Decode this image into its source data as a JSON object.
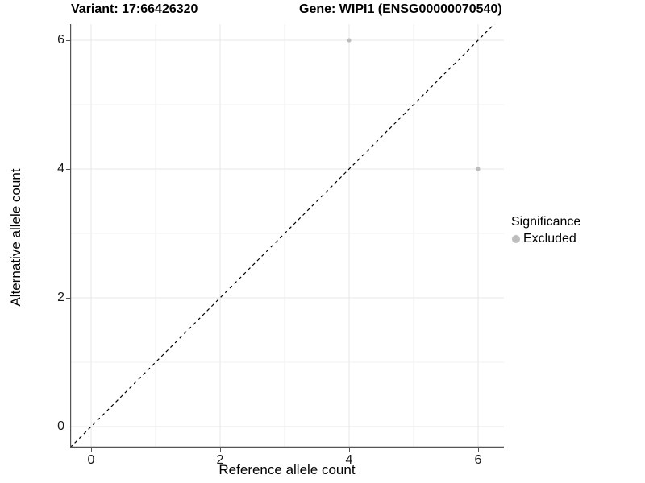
{
  "titles": {
    "left": "Variant: 17:66426320",
    "right": "Gene: WIPI1 (ENSG00000070540)"
  },
  "chart_data": {
    "type": "scatter",
    "title_left": "Variant: 17:66426320",
    "title_right": "Gene: WIPI1 (ENSG00000070540)",
    "xlabel": "Reference allele count",
    "ylabel": "Alternative allele count",
    "xlim": [
      -0.325,
      6.4
    ],
    "ylim": [
      -0.325,
      6.25
    ],
    "x_ticks": [
      0,
      2,
      4,
      6
    ],
    "y_ticks": [
      0,
      2,
      4,
      6
    ],
    "x_tick_labels": [
      "0",
      "2",
      "4",
      "6"
    ],
    "y_tick_labels": [
      "0",
      "2",
      "4",
      "6"
    ],
    "minor_ticks": [
      1,
      3,
      5
    ],
    "grid": true,
    "series": [
      {
        "name": "Excluded",
        "color": "#bdbdbd",
        "points": [
          {
            "x": 4,
            "y": 6
          },
          {
            "x": 6,
            "y": 4
          }
        ]
      }
    ],
    "reference_line": {
      "type": "identity",
      "slope": 1,
      "intercept": 0,
      "style": "dashed",
      "color": "#000000"
    },
    "legend": {
      "title": "Significance",
      "position": "right",
      "items": [
        {
          "label": "Excluded",
          "color": "#bdbdbd"
        }
      ]
    }
  },
  "colors": {
    "background": "#ffffff",
    "axis_line": "#555555",
    "grid_major": "#e7e7e7",
    "grid_minor": "#f2f2f2",
    "point": "#bdbdbd",
    "dashed_line": "#000000"
  }
}
